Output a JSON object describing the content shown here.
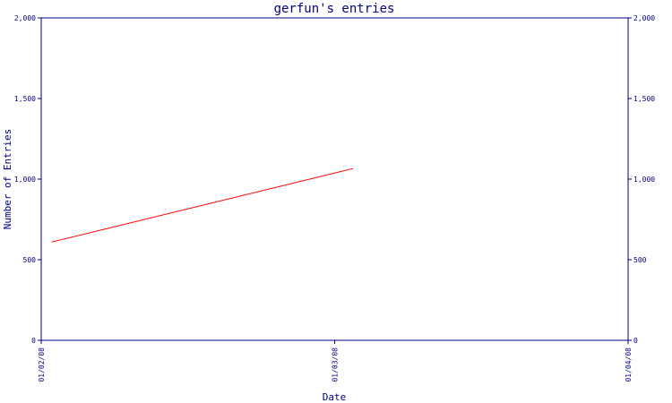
{
  "chart_data": {
    "type": "line",
    "title": "gerfun's entries",
    "xlabel": "Date",
    "ylabel": "Number of Entries",
    "x_ticks": [
      "01/02/08",
      "01/03/08",
      "01/04/08"
    ],
    "y_ticks": [
      "0",
      "500",
      "1,000",
      "1,500",
      "2,000"
    ],
    "ylim": [
      0,
      2000
    ],
    "grid": false,
    "secondary_y_axis": true,
    "series": [
      {
        "x": [
          "01/02/08",
          "01/03/08"
        ],
        "values": [
          610,
          1065
        ],
        "color": "#ff0000"
      }
    ],
    "colors": {
      "axis": "#000080",
      "line": "#ff0000",
      "background": "#ffffff"
    }
  }
}
